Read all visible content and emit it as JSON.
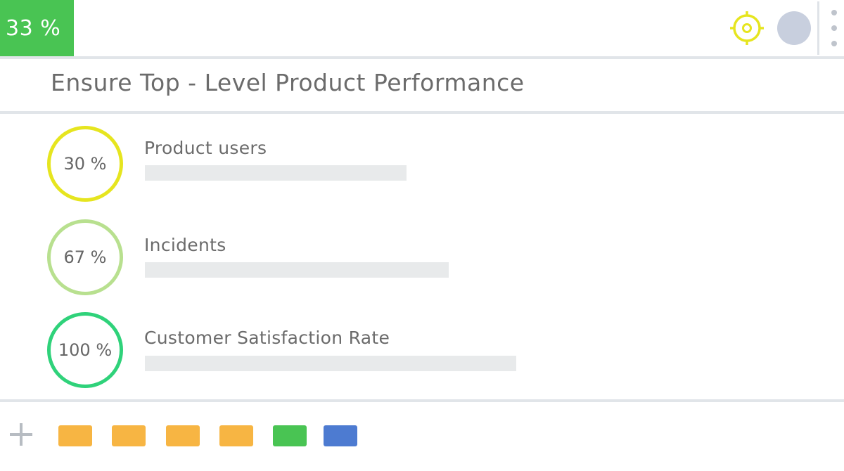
{
  "header": {
    "progress_label": "33 %",
    "progress_fraction": 0.33,
    "progress_color": "#49c453",
    "target_icon": "target-icon",
    "target_color": "#e6e51f",
    "avatar_color": "#c8cfde",
    "menu_icon": "kebab-menu-icon"
  },
  "goal": {
    "title": "Ensure Top - Level Product Performance"
  },
  "kpis": [
    {
      "percent_label": "30 %",
      "percent_value": 30,
      "ring_color": "#e6e51f",
      "label": "Product users",
      "bar_fraction": 0.31
    },
    {
      "percent_label": "67 %",
      "percent_value": 67,
      "ring_color": "#b8e08f",
      "label": "Incidents",
      "bar_fraction": 0.36
    },
    {
      "percent_label": "100 %",
      "percent_value": 100,
      "ring_color": "#2fd27a",
      "label": "Customer Satisfaction Rate",
      "bar_fraction": 0.44
    }
  ],
  "footer": {
    "add_icon": "plus-icon",
    "tags": [
      {
        "color": "#f7b543"
      },
      {
        "color": "#f7b543"
      },
      {
        "color": "#f7b543"
      },
      {
        "color": "#f7b543"
      },
      {
        "color": "#49c453"
      },
      {
        "color": "#4d7bd1"
      }
    ]
  }
}
